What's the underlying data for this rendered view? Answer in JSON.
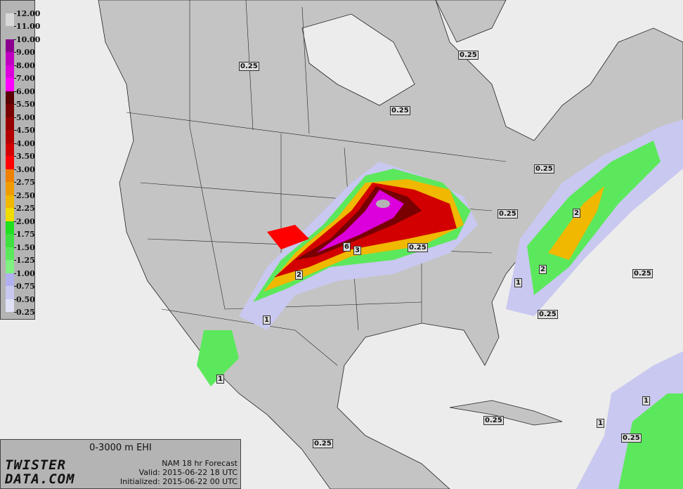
{
  "legend": {
    "ticks": [
      "12.00",
      "11.00",
      "10.00",
      "9.00",
      "8.00",
      "7.00",
      "6.00",
      "5.50",
      "5.00",
      "4.50",
      "4.00",
      "3.50",
      "3.00",
      "2.75",
      "2.50",
      "2.25",
      "2.00",
      "1.75",
      "1.50",
      "1.25",
      "1.00",
      "0.75",
      "0.50",
      "0.25"
    ],
    "colors": [
      "#d8d8d8",
      "#b4b4b4",
      "#8c0090",
      "#c000c0",
      "#dc00dc",
      "#ff00ff",
      "#5a0000",
      "#780000",
      "#960000",
      "#b40000",
      "#d20000",
      "#ff0000",
      "#f08000",
      "#f09c00",
      "#f0b800",
      "#f0dc00",
      "#20e020",
      "#40e040",
      "#5ce85c",
      "#80f080",
      "#b0b0f0",
      "#c8c8f0",
      "#e0e0f6"
    ]
  },
  "info": {
    "title": "0-3000 m EHI",
    "logo": "TWISTER DATA.COM",
    "model": "NAM 18 hr Forecast",
    "valid": "Valid: 2015-06-22 18 UTC",
    "initialized": "Initialized: 2015-06-22 00 UTC"
  },
  "contour_labels": [
    "0.25",
    "0.25",
    "0.25",
    "0.25",
    "0.25",
    "0.25",
    "0.25",
    "0.25",
    "0.25",
    "0.25",
    "0.25",
    "6",
    "3",
    "2",
    "2",
    "2",
    "1",
    "1",
    "1",
    "1",
    "1"
  ]
}
